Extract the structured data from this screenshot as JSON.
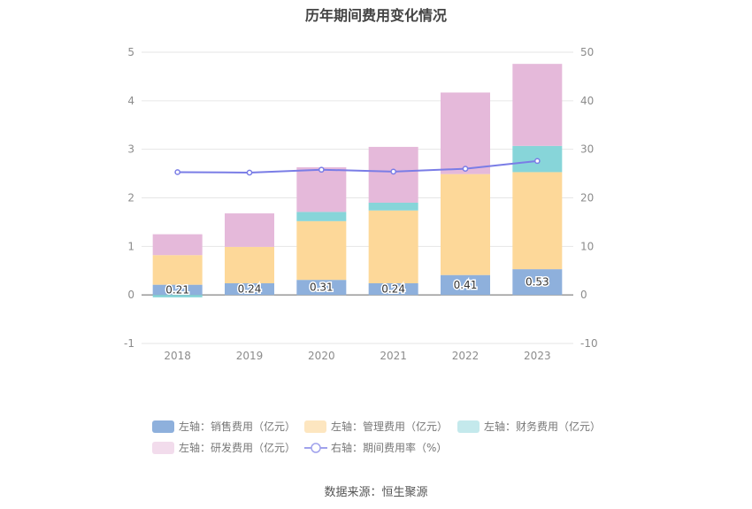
{
  "title": "历年期间费用变化情况",
  "source": "数据来源：恒生聚源",
  "chart_data": {
    "type": "bar",
    "stacked": true,
    "categories": [
      "2018",
      "2019",
      "2020",
      "2021",
      "2022",
      "2023"
    ],
    "series": [
      {
        "name": "左轴：销售费用（亿元）",
        "axis": "left",
        "color": "#8eb0dc",
        "values": [
          0.21,
          0.24,
          0.31,
          0.24,
          0.41,
          0.53
        ],
        "labels": [
          "0.21",
          "0.24",
          "0.31",
          "0.24",
          "0.41",
          "0.53"
        ]
      },
      {
        "name": "左轴：管理费用（亿元）",
        "axis": "left",
        "color": "#fdd899",
        "legend_color": "#fde6c0",
        "values": [
          0.61,
          0.75,
          1.21,
          1.5,
          2.08,
          2.0
        ]
      },
      {
        "name": "左轴：财务费用（亿元）",
        "axis": "left",
        "color": "#87d5d9",
        "legend_color": "#c4e9ec",
        "values": [
          -0.05,
          0.0,
          0.19,
          0.16,
          0.0,
          0.54
        ]
      },
      {
        "name": "左轴：研发费用（亿元）",
        "axis": "left",
        "color": "#e5b9da",
        "legend_color": "#f2dcec",
        "values": [
          0.43,
          0.69,
          0.92,
          1.15,
          1.68,
          1.69
        ]
      },
      {
        "name": "右轴：期间费用率（%）",
        "axis": "right",
        "type": "line",
        "color": "#7a7de6",
        "values": [
          25.3,
          25.2,
          25.8,
          25.4,
          26.0,
          27.6
        ]
      }
    ],
    "left_axis": {
      "ylim": [
        -1,
        5
      ],
      "ticks": [
        "5",
        "4",
        "3",
        "2",
        "1",
        "0",
        "-1"
      ]
    },
    "right_axis": {
      "ylim": [
        -10,
        50
      ],
      "ticks": [
        "50",
        "40",
        "30",
        "20",
        "10",
        "0",
        "-10"
      ]
    },
    "grid": true,
    "legend_position": "bottom"
  }
}
